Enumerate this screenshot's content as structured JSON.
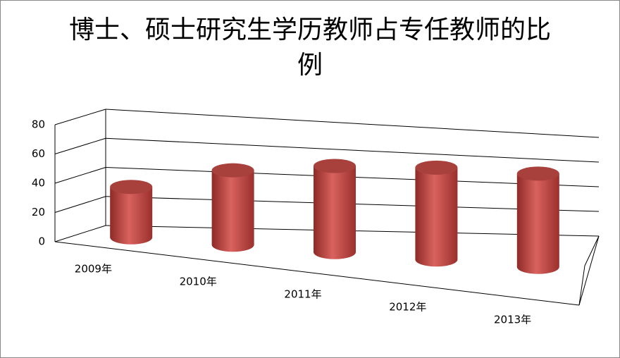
{
  "chart_data": {
    "type": "bar3d-cylinder",
    "title": "博士、硕士研究生学历教师占专任教师的比例",
    "categories": [
      "2009年",
      "2010年",
      "2011年",
      "2012年",
      "2013年"
    ],
    "values": [
      35,
      53,
      63,
      69,
      72
    ],
    "color": "#c0504d",
    "ylim": [
      0,
      80
    ],
    "yticks": [
      0,
      20,
      40,
      60,
      80
    ],
    "grid": true
  }
}
